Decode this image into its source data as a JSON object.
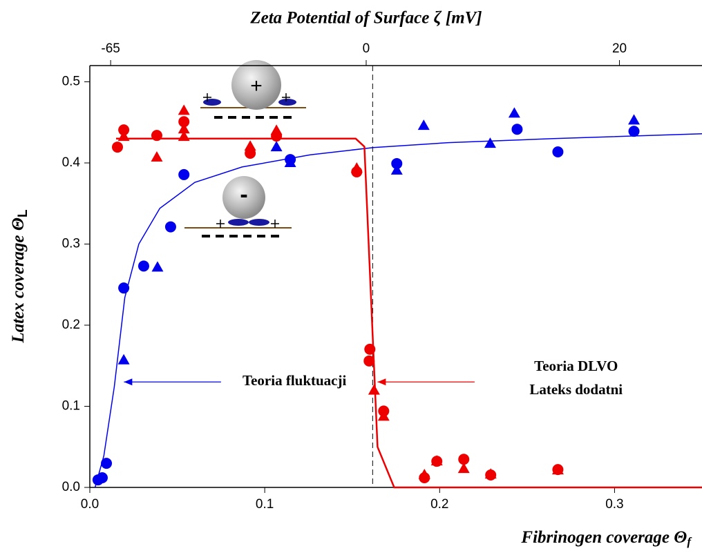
{
  "chart_data": {
    "type": "scatter",
    "title": "Zeta Potential of Surface ζ [mV]",
    "x_label": "Fibrinogen coverage Θ",
    "x_label_sub": "f",
    "y_label": "Latex coverage Θ",
    "y_label_sub": "L",
    "xlim": [
      0,
      0.35
    ],
    "ylim": [
      0,
      0.52
    ],
    "xticks": [
      {
        "value": 0,
        "label": "0.0"
      },
      0.1,
      0.2,
      0.3
    ],
    "yticks": [
      {
        "value": 0,
        "label": "0.0"
      },
      0.1,
      0.2,
      0.3,
      0.4,
      0.5
    ],
    "top_axis": {
      "ticks": [
        -65,
        0,
        20
      ],
      "positions": [
        0.0119,
        0.158,
        0.3028
      ]
    },
    "reference_x": 0.1617,
    "series": [
      {
        "name": "blue circles",
        "color": "#0000ee",
        "marker": "circle",
        "x": [
          0.0047,
          0.0071,
          0.0095,
          0.0194,
          0.0308,
          0.0462,
          0.0538,
          0.1146,
          0.1755,
          0.2443,
          0.2676,
          0.3111
        ],
        "values": [
          0.0093,
          0.0119,
          0.0297,
          0.2458,
          0.2729,
          0.3212,
          0.3856,
          0.4042,
          0.3992,
          0.4415,
          0.4136,
          0.439
        ]
      },
      {
        "name": "blue triangles",
        "color": "#0000ee",
        "marker": "triangle",
        "x": [
          0.0194,
          0.0387,
          0.1067,
          0.1146,
          0.1755,
          0.1909,
          0.2289,
          0.2427,
          0.3111
        ],
        "values": [
          0.1568,
          0.2712,
          0.4195,
          0.4,
          0.3907,
          0.4458,
          0.4237,
          0.461,
          0.4525
        ]
      },
      {
        "name": "red circles",
        "color": "#ee0000",
        "marker": "circle",
        "x": [
          0.0158,
          0.0194,
          0.0383,
          0.0538,
          0.0917,
          0.1067,
          0.1526,
          0.1601,
          0.1597,
          0.168,
          0.1913,
          0.1984,
          0.2138,
          0.2292,
          0.2676
        ],
        "values": [
          0.4195,
          0.4407,
          0.4339,
          0.4508,
          0.4119,
          0.4331,
          0.389,
          0.1703,
          0.1559,
          0.0941,
          0.0119,
          0.0322,
          0.0347,
          0.0153,
          0.022
        ]
      },
      {
        "name": "red triangles",
        "color": "#ee0000",
        "marker": "triangle",
        "x": [
          0.0194,
          0.0383,
          0.0538,
          0.0538,
          0.0538,
          0.0917,
          0.1067,
          0.1526,
          0.1625,
          0.168,
          0.1913,
          0.1984,
          0.2138,
          0.2292,
          0.2676
        ],
        "values": [
          0.4322,
          0.4068,
          0.4644,
          0.4415,
          0.4322,
          0.4203,
          0.4398,
          0.3932,
          0.1195,
          0.0873,
          0.0153,
          0.0322,
          0.0229,
          0.0161,
          0.0212
        ]
      },
      {
        "name": "Teoria fluktuacji",
        "color": "#0000ee",
        "marker": "line",
        "x": [
          0.003,
          0.008,
          0.014,
          0.02,
          0.028,
          0.04,
          0.06,
          0.087,
          0.126,
          0.162,
          0.205,
          0.265,
          0.35
        ],
        "values": [
          0,
          0.039,
          0.124,
          0.234,
          0.3,
          0.344,
          0.376,
          0.395,
          0.41,
          0.419,
          0.425,
          0.43,
          0.436
        ]
      },
      {
        "name": "Teoria DLVO Lateks dodatni",
        "color": "#ee0000",
        "marker": "line",
        "x": [
          0.015,
          0.152,
          0.157,
          0.1645,
          0.174,
          0.35
        ],
        "values": [
          0.43,
          0.43,
          0.42,
          0.05,
          0,
          0
        ]
      }
    ],
    "annotations": [
      {
        "text": "Teoria fluktuacji",
        "x": 0.117,
        "y": 0.13,
        "arrow_from": 0.075,
        "arrow_to": 0.0195,
        "color": "#0000ee"
      },
      {
        "text": "Teoria DLVO",
        "x": 0.278,
        "y": 0.148
      },
      {
        "text": "Lateks dodatni",
        "x": 0.278,
        "y": 0.119,
        "arrow_from": 0.22,
        "arrow_to": 0.1645,
        "arrow_y": 0.13,
        "color": "#ee0000"
      }
    ],
    "insets": [
      {
        "sign": "+"
      },
      {
        "sign": "-"
      }
    ]
  }
}
